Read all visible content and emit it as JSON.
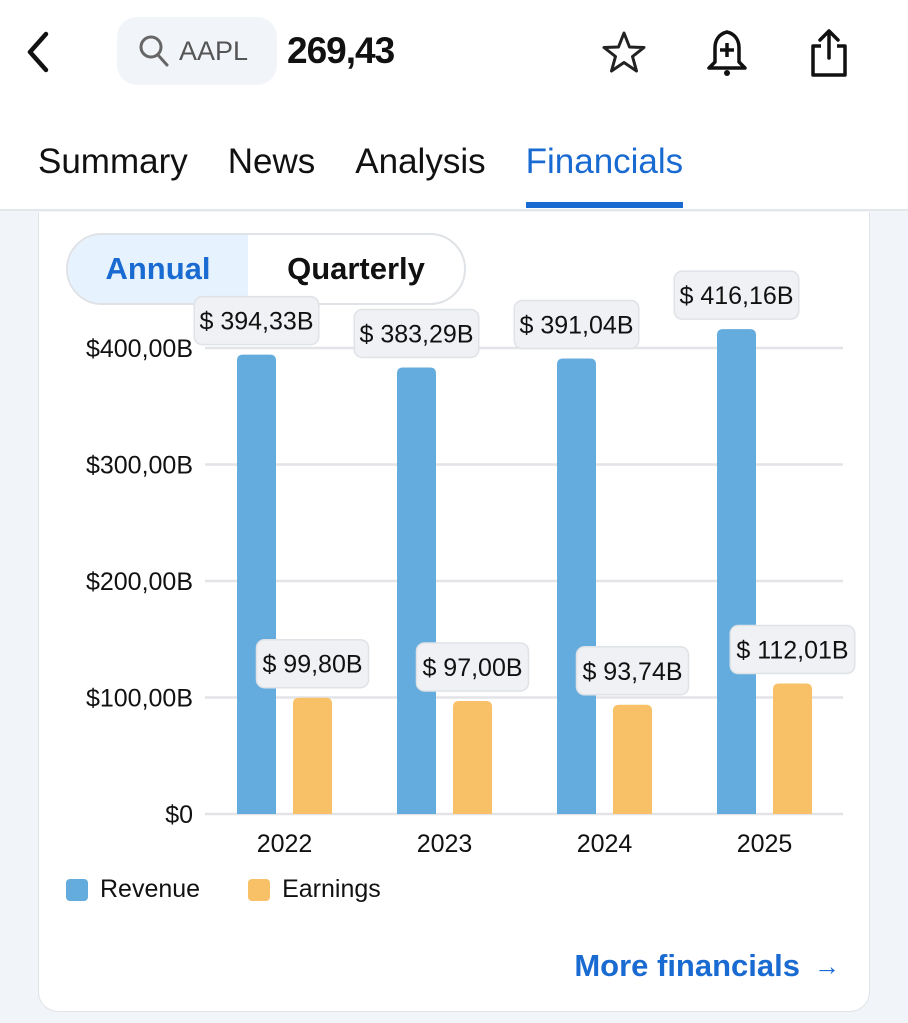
{
  "header": {
    "ticker": "AAPL",
    "price": "269,43",
    "icons": [
      "back-icon",
      "search-icon",
      "star-icon",
      "bell-plus-icon",
      "share-icon"
    ]
  },
  "tabs": [
    {
      "label": "Summary"
    },
    {
      "label": "News"
    },
    {
      "label": "Analysis"
    },
    {
      "label": "Financials",
      "active": true
    }
  ],
  "toggle": {
    "annual": "Annual",
    "quarterly": "Quarterly",
    "selected": "Annual"
  },
  "more_link": "More financials",
  "colors": {
    "accent": "#1a6bd1",
    "revenue": "#64acdd",
    "earnings": "#f8c167"
  },
  "chart_data": {
    "type": "bar",
    "categories": [
      "2022",
      "2023",
      "2024",
      "2025"
    ],
    "series": [
      {
        "name": "Revenue",
        "values": [
          394.33,
          383.29,
          391.04,
          416.16
        ],
        "labels": [
          "$ 394,33B",
          "$ 383,29B",
          "$ 391,04B",
          "$ 416,16B"
        ],
        "color": "#64acdd"
      },
      {
        "name": "Earnings",
        "values": [
          99.8,
          97.0,
          93.74,
          112.01
        ],
        "labels": [
          "$ 99,80B",
          "$ 97,00B",
          "$ 93,74B",
          "$ 112,01B"
        ],
        "color": "#f8c167"
      }
    ],
    "yticks": [
      {
        "v": 0,
        "label": "$0"
      },
      {
        "v": 100,
        "label": "$100,00B"
      },
      {
        "v": 200,
        "label": "$200,00B"
      },
      {
        "v": 300,
        "label": "$300,00B"
      },
      {
        "v": 400,
        "label": "$400,00B"
      }
    ],
    "ylim": [
      0,
      400
    ],
    "unit": "billions USD",
    "grid": true,
    "legend": "bottom-left"
  }
}
